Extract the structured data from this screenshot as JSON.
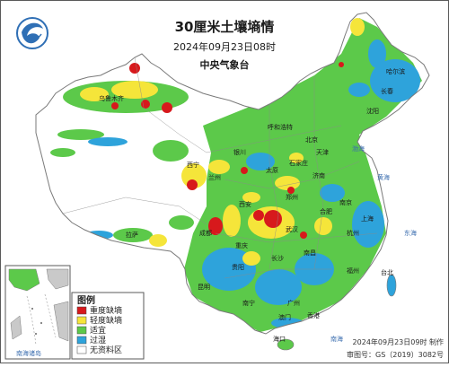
{
  "header": {
    "title": "30厘米土壤墒情",
    "datetime": "2024年09月23日08时",
    "agency": "中央气象台"
  },
  "legend": {
    "title": "图例",
    "items": [
      {
        "label": "重度缺墒",
        "color": "#d7191c"
      },
      {
        "label": "轻度缺墒",
        "color": "#f5e53a"
      },
      {
        "label": "适宜",
        "color": "#5cc94a"
      },
      {
        "label": "过湿",
        "color": "#2ea3db"
      },
      {
        "label": "无资料区",
        "color": "#ffffff"
      }
    ]
  },
  "inset": {
    "label": "南海诸岛"
  },
  "footer": {
    "made": "2024年09月23日09时 制作",
    "review": "审图号：GS（2019）3082号"
  },
  "places": [
    {
      "name": "乌鲁木齐"
    },
    {
      "name": "拉萨"
    },
    {
      "name": "西宁"
    },
    {
      "name": "兰州"
    },
    {
      "name": "银川"
    },
    {
      "name": "呼和浩特"
    },
    {
      "name": "哈尔滨"
    },
    {
      "name": "长春"
    },
    {
      "name": "沈阳"
    },
    {
      "name": "北京"
    },
    {
      "name": "天津"
    },
    {
      "name": "石家庄"
    },
    {
      "name": "太原"
    },
    {
      "name": "济南"
    },
    {
      "name": "郑州"
    },
    {
      "name": "西安"
    },
    {
      "name": "成都"
    },
    {
      "name": "重庆"
    },
    {
      "name": "武汉"
    },
    {
      "name": "合肥"
    },
    {
      "name": "南京"
    },
    {
      "name": "上海"
    },
    {
      "name": "杭州"
    },
    {
      "name": "长沙"
    },
    {
      "name": "南昌"
    },
    {
      "name": "福州"
    },
    {
      "name": "台北"
    },
    {
      "name": "贵阳"
    },
    {
      "name": "昆明"
    },
    {
      "name": "南宁"
    },
    {
      "name": "广州"
    },
    {
      "name": "香港"
    },
    {
      "name": "澳门"
    },
    {
      "name": "海口"
    }
  ],
  "seas": [
    {
      "name": "渤海"
    },
    {
      "name": "黄海"
    },
    {
      "name": "东海"
    },
    {
      "name": "南海"
    }
  ],
  "colors": {
    "border": "#7a7a7a",
    "frame": "#5a5a5a",
    "water": "#ffffff"
  }
}
